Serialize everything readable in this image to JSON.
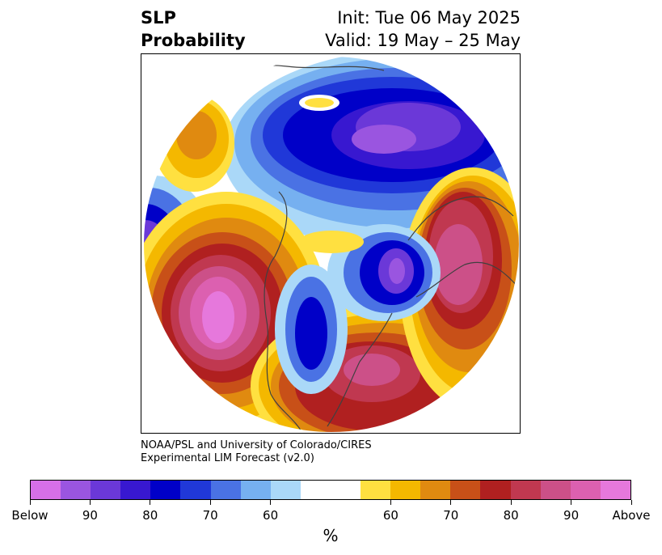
{
  "title": {
    "left_line1": "SLP",
    "left_line2": "Probability",
    "right_line1": "Init: Tue 06 May 2025",
    "right_line2": "Valid: 19 May – 25 May"
  },
  "credit": {
    "line1": "NOAA/PSL and University of Colorado/CIRES",
    "line2": "Experimental LIM Forecast (v2.0)"
  },
  "colorbar": {
    "colors": [
      "#d66fe8",
      "#9a55e0",
      "#6b38d8",
      "#3818d0",
      "#0000c8",
      "#2038d8",
      "#4a72e4",
      "#76b0f0",
      "#aad8f8",
      "#ffffff",
      "#ffffff",
      "#ffe040",
      "#f4b800",
      "#e08a10",
      "#c85018",
      "#b02020",
      "#c03850",
      "#cc5088",
      "#dc60b0",
      "#e678dc"
    ],
    "tick_labels": [
      "Below",
      "90",
      "80",
      "70",
      "60",
      "60",
      "70",
      "80",
      "90",
      "Above"
    ],
    "unit": "%"
  },
  "map": {
    "projection": "north-polar stereographic",
    "variable": "Sea level pressure tercile probability",
    "features": [
      {
        "region": "Siberia / Arctic",
        "category": "below",
        "peak": "80-90"
      },
      {
        "region": "Greenland / Labrador",
        "category": "below",
        "peak": "80-90"
      },
      {
        "region": "North Pacific",
        "category": "above",
        "peak": ">90"
      },
      {
        "region": "Eastern North America",
        "category": "above",
        "peak": "70-80"
      },
      {
        "region": "Europe",
        "category": "above",
        "peak": "90"
      },
      {
        "region": "Western Pacific",
        "category": "below",
        "peak": "80"
      },
      {
        "region": "Hudson Bay / central Canada",
        "category": "below",
        "peak": "80"
      }
    ]
  }
}
